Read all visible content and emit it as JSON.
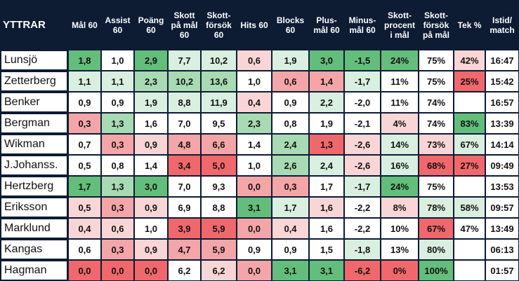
{
  "table": {
    "headers": [
      "YTTRAR",
      "Mål 60",
      "Assist\n60",
      "Poäng\n60",
      "Skott\npå mål\n60",
      "Skott-\nförsök\n60",
      "Hits 60",
      "Blocks\n60",
      "Plus-\nmål 60",
      "Minus-\nmål 60",
      "Skott-\nprocent\ni mål",
      "Skott-\nförsök\npå mål",
      "Tek %",
      "Istid/\nmatch"
    ],
    "rows": [
      {
        "name": "Lunsjö",
        "cells": [
          "1,8",
          "1,0",
          "2,9",
          "7,7",
          "10,2",
          "0,6",
          "1,9",
          "3,0",
          "-1,5",
          "24%",
          "75%",
          "42%",
          "16:47"
        ],
        "colors": [
          "#63be7b",
          "#ffffff",
          "#63be7b",
          "#d9efdf",
          "#d9efdf",
          "#f9d5d6",
          "#d9efdf",
          "#63be7b",
          "#63be7b",
          "#63be7b",
          "#ffffff",
          "#f9d5d6",
          "#ffffff"
        ]
      },
      {
        "name": "Zetterberg",
        "cells": [
          "1,1",
          "1,1",
          "2,3",
          "10,2",
          "13,6",
          "1,0",
          "0,6",
          "1,4",
          "-1,7",
          "11%",
          "75%",
          "25%",
          "15:42"
        ],
        "colors": [
          "#d9efdf",
          "#d9efdf",
          "#a8dab3",
          "#a8dab3",
          "#a8dab3",
          "#ffffff",
          "#f4a5a8",
          "#f4a5a8",
          "#d9efdf",
          "#ffffff",
          "#ffffff",
          "#f0686c",
          "#ffffff"
        ]
      },
      {
        "name": "Benker",
        "cells": [
          "0,9",
          "0,9",
          "1,9",
          "8,8",
          "11,9",
          "0,4",
          "0,9",
          "2,2",
          "-2,0",
          "11%",
          "74%",
          null,
          "16:57"
        ],
        "colors": [
          "#ffffff",
          "#ffffff",
          "#d9efdf",
          "#d9efdf",
          "#d9efdf",
          "#f9d5d6",
          "#ffffff",
          "#d9efdf",
          "#ffffff",
          "#ffffff",
          "#ffffff",
          "#ffffff",
          "#ffffff"
        ]
      },
      {
        "name": "Bergman",
        "cells": [
          "0,3",
          "1,3",
          "1,6",
          "7,0",
          "9,5",
          "2,3",
          "0,8",
          "1,9",
          "-2,1",
          "4%",
          "74%",
          "83%",
          "13:39"
        ],
        "colors": [
          "#f4a5a8",
          "#a8dab3",
          "#ffffff",
          "#ffffff",
          "#ffffff",
          "#a8dab3",
          "#ffffff",
          "#ffffff",
          "#ffffff",
          "#f9d5d6",
          "#ffffff",
          "#63be7b",
          "#ffffff"
        ]
      },
      {
        "name": "Wikman",
        "cells": [
          "0,7",
          "0,3",
          "0,9",
          "4,8",
          "6,6",
          "1,4",
          "2,4",
          "1,3",
          "-2,6",
          "14%",
          "73%",
          "67%",
          "14:14"
        ],
        "colors": [
          "#ffffff",
          "#f4a5a8",
          "#f9d5d6",
          "#f4a5a8",
          "#f4a5a8",
          "#ffffff",
          "#a8dab3",
          "#f0686c",
          "#f9d5d6",
          "#d9efdf",
          "#f9d5d6",
          "#d9efdf",
          "#ffffff"
        ]
      },
      {
        "name": "J.Johanss.",
        "cells": [
          "0,5",
          "0,8",
          "1,4",
          "3,4",
          "5,0",
          "1,0",
          "2,6",
          "2,4",
          "-2,6",
          "16%",
          "68%",
          "27%",
          "09:49"
        ],
        "colors": [
          "#ffffff",
          "#ffffff",
          "#ffffff",
          "#f0686c",
          "#f0686c",
          "#ffffff",
          "#a8dab3",
          "#d9efdf",
          "#f9d5d6",
          "#d9efdf",
          "#f0686c",
          "#f0686c",
          "#ffffff"
        ]
      },
      {
        "name": "Hertzberg",
        "cells": [
          "1,7",
          "1,3",
          "3,0",
          "7,0",
          "9,3",
          "0,0",
          "0,3",
          "1,7",
          "-1,7",
          "24%",
          "75%",
          null,
          "13:53"
        ],
        "colors": [
          "#63be7b",
          "#a8dab3",
          "#63be7b",
          "#ffffff",
          "#ffffff",
          "#f4a5a8",
          "#f4a5a8",
          "#ffffff",
          "#d9efdf",
          "#63be7b",
          "#ffffff",
          "#ffffff",
          "#ffffff"
        ]
      },
      {
        "name": "Eriksson",
        "cells": [
          "0,5",
          "0,3",
          "0,9",
          "6,9",
          "8,8",
          "3,1",
          "1,7",
          "1,6",
          "-2,2",
          "8%",
          "78%",
          "58%",
          "09:57"
        ],
        "colors": [
          "#f9d5d6",
          "#f4a5a8",
          "#f9d5d6",
          "#ffffff",
          "#ffffff",
          "#63be7b",
          "#d9efdf",
          "#f9d5d6",
          "#ffffff",
          "#f9d5d6",
          "#d9efdf",
          "#d9efdf",
          "#ffffff"
        ]
      },
      {
        "name": "Marklund",
        "cells": [
          "0,4",
          "0,6",
          "1,0",
          "3,9",
          "5,9",
          "0,0",
          "0,4",
          "1,6",
          "-2,2",
          "10%",
          "67%",
          "47%",
          "13:49"
        ],
        "colors": [
          "#f9d5d6",
          "#f9d5d6",
          "#ffffff",
          "#f0686c",
          "#f0686c",
          "#f4a5a8",
          "#f9d5d6",
          "#ffffff",
          "#ffffff",
          "#ffffff",
          "#f0686c",
          "#ffffff",
          "#ffffff"
        ]
      },
      {
        "name": "Kangas",
        "cells": [
          "0,6",
          "0,3",
          "0,9",
          "4,7",
          "5,9",
          "0,9",
          "0,9",
          "1,5",
          "-1,8",
          "13%",
          "80%",
          null,
          "06:13"
        ],
        "colors": [
          "#ffffff",
          "#f4a5a8",
          "#f9d5d6",
          "#f4a5a8",
          "#f4a5a8",
          "#ffffff",
          "#ffffff",
          "#ffffff",
          "#d9efdf",
          "#ffffff",
          "#d9efdf",
          "#ffffff",
          "#ffffff"
        ]
      },
      {
        "name": "Hagman",
        "cells": [
          "0,0",
          "0,0",
          "0,0",
          "6,2",
          "6,2",
          "0,0",
          "3,1",
          "3,1",
          "-6,2",
          "0%",
          "100%",
          null,
          "01:57"
        ],
        "colors": [
          "#f0686c",
          "#f0686c",
          "#f0686c",
          "#ffffff",
          "#f9d5d6",
          "#f4a5a8",
          "#63be7b",
          "#63be7b",
          "#f0686c",
          "#f0686c",
          "#63be7b",
          "#ffffff",
          "#ffffff"
        ]
      }
    ]
  }
}
